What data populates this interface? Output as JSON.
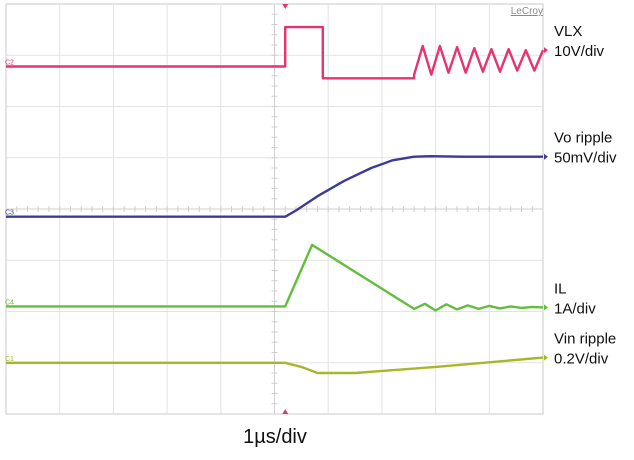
{
  "chart_data": {
    "type": "line",
    "title": "",
    "xlabel": "1µs/div",
    "ylabel": "",
    "brand": "LeCroy",
    "grid": true,
    "x_divisions": 10,
    "y_divisions": 8,
    "x_range": [
      0,
      10
    ],
    "y_range": [
      0,
      8
    ],
    "trigger_x": 5.2,
    "channel_markers": [
      "C2",
      "C3",
      "C4",
      "C1"
    ],
    "series": [
      {
        "name": "VLX",
        "scale": "10V/div",
        "color": "#e8336f",
        "x": [
          0,
          5.2,
          5.2,
          5.9,
          5.9,
          7.6,
          7.6,
          7.76,
          7.92,
          8.08,
          8.24,
          8.4,
          8.56,
          8.72,
          8.88,
          9.04,
          9.2,
          9.36,
          9.52,
          9.68,
          9.84,
          10.0
        ],
        "y": [
          6.78,
          6.78,
          7.55,
          7.55,
          6.55,
          6.55,
          6.62,
          7.18,
          6.62,
          7.18,
          6.66,
          7.16,
          6.66,
          7.14,
          6.68,
          7.12,
          6.68,
          7.12,
          6.7,
          7.1,
          6.7,
          7.1
        ]
      },
      {
        "name": "Vo ripple",
        "scale": "50mV/div",
        "color": "#3c3c98",
        "x": [
          0,
          5.2,
          5.4,
          5.8,
          6.3,
          6.8,
          7.2,
          7.6,
          7.9,
          8.5,
          10.0
        ],
        "y": [
          3.85,
          3.85,
          3.97,
          4.25,
          4.55,
          4.8,
          4.95,
          5.02,
          5.03,
          5.02,
          5.02
        ]
      },
      {
        "name": "IL",
        "scale": "1A/div",
        "color": "#62be3c",
        "x": [
          0,
          5.2,
          5.7,
          7.6,
          7.8,
          8.0,
          8.2,
          8.4,
          8.6,
          8.8,
          9.0,
          9.2,
          9.4,
          9.6,
          9.8,
          10.0
        ],
        "y": [
          2.1,
          2.1,
          3.3,
          2.05,
          2.15,
          2.02,
          2.14,
          2.04,
          2.12,
          2.05,
          2.11,
          2.06,
          2.1,
          2.07,
          2.09,
          2.08
        ]
      },
      {
        "name": "Vin ripple",
        "scale": "0.2V/div",
        "color": "#a6b82a",
        "x": [
          0,
          5.2,
          5.5,
          5.8,
          6.5,
          8.0,
          10.0
        ],
        "y": [
          1.0,
          1.0,
          0.92,
          0.8,
          0.8,
          0.92,
          1.1
        ]
      }
    ]
  }
}
